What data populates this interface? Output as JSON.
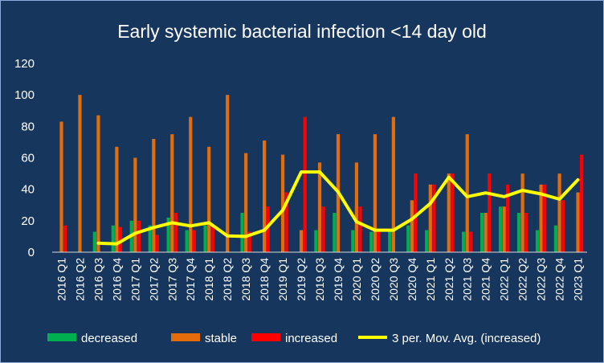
{
  "chart_data": {
    "type": "bar",
    "title": "Early systemic bacterial infection <14 day old",
    "xlabel": "",
    "ylabel": "",
    "ylim": [
      0,
      120
    ],
    "yticks": [
      0,
      20,
      40,
      60,
      80,
      100,
      120
    ],
    "grid": false,
    "legend_position": "bottom",
    "categories": [
      "2016 Q1",
      "2016 Q2",
      "2016 Q3",
      "2016 Q4",
      "2017 Q1",
      "2017 Q2",
      "2017 Q3",
      "2017 Q4",
      "2018 Q1",
      "2018 Q2",
      "2018 Q3",
      "2018 Q4",
      "2019 Q1",
      "2019 Q2",
      "2019 Q3",
      "2019 Q4",
      "2020 Q1",
      "2020 Q2",
      "2020 Q3",
      "2020 Q4",
      "2021 Q1",
      "2021 Q2",
      "2021 Q3",
      "2021 Q4",
      "2022 Q1",
      "2022 Q2",
      "2022 Q3",
      "2022 Q4",
      "2023 Q1"
    ],
    "series": [
      {
        "name": "decreased",
        "type": "bar",
        "color": "#00b050",
        "values": [
          0,
          0,
          13,
          17,
          20,
          17,
          22,
          14,
          17,
          0,
          25,
          0,
          0,
          0,
          14,
          25,
          14,
          13,
          14,
          17,
          14,
          0,
          13,
          25,
          29,
          25,
          14,
          17,
          0
        ]
      },
      {
        "name": "stable",
        "type": "bar",
        "color": "#e46c0a",
        "values": [
          83,
          100,
          87,
          67,
          60,
          72,
          75,
          86,
          67,
          100,
          63,
          71,
          62,
          14,
          57,
          75,
          57,
          75,
          86,
          33,
          43,
          50,
          75,
          25,
          29,
          50,
          43,
          50,
          38
        ]
      },
      {
        "name": "increased",
        "type": "bar",
        "color": "#ff0000",
        "values": [
          17,
          0,
          0,
          16,
          20,
          11,
          25,
          14,
          17,
          0,
          13,
          29,
          38,
          86,
          29,
          0,
          29,
          13,
          0,
          50,
          43,
          50,
          13,
          50,
          43,
          25,
          43,
          33,
          62
        ]
      },
      {
        "name": "3 per. Mov. Avg. (increased)",
        "type": "line",
        "color": "#ffff00",
        "values": [
          null,
          null,
          5.7,
          5.3,
          12,
          15.7,
          18.7,
          16.7,
          18.7,
          10.3,
          10,
          14,
          26.7,
          51,
          51,
          38.3,
          19.3,
          14,
          14,
          21,
          31,
          47.7,
          35.3,
          37.7,
          35.3,
          39.3,
          37,
          33.7,
          46
        ]
      }
    ]
  }
}
